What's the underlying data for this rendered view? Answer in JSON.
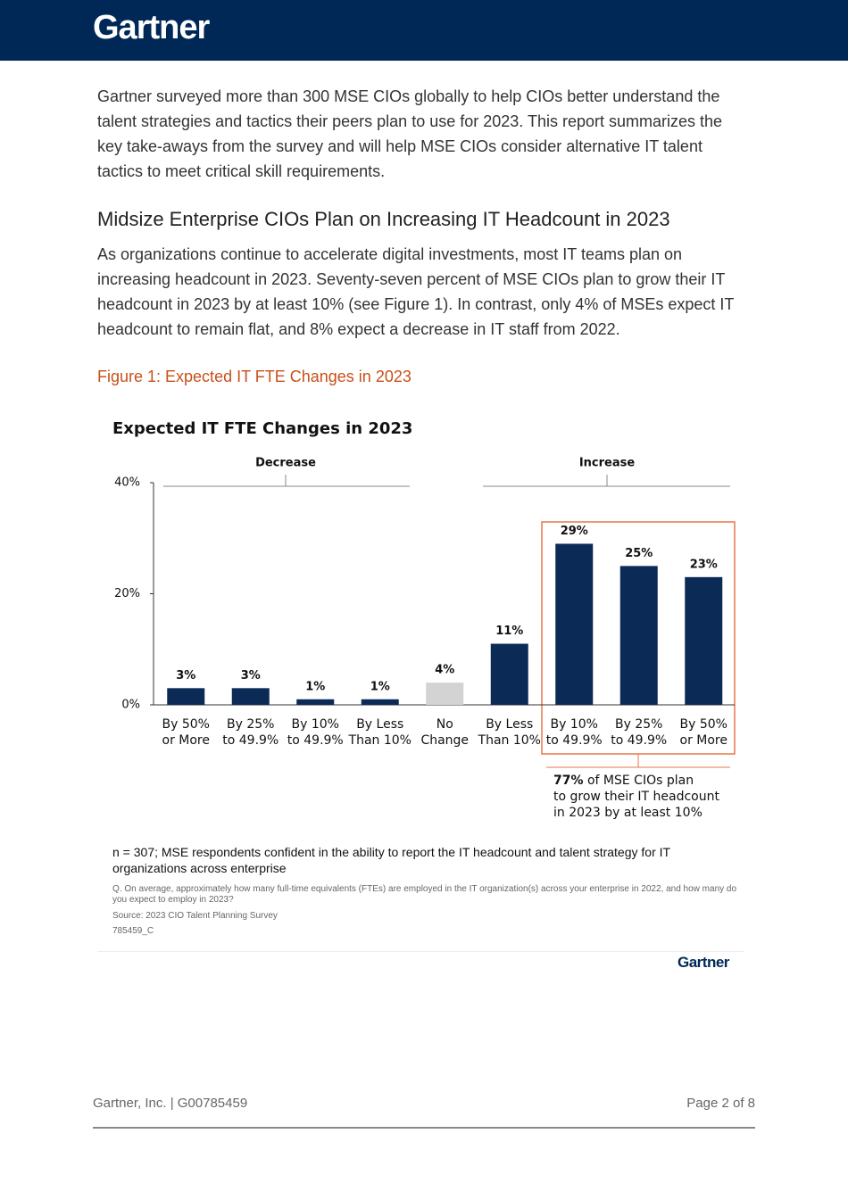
{
  "header": {
    "logo": "Gartner"
  },
  "intro": "Gartner surveyed more than 300 MSE CIOs globally to help CIOs better understand the talent strategies and tactics their peers plan to use for 2023. This report summarizes the key take-aways from the survey and will help MSE CIOs consider alternative IT talent tactics to meet critical skill requirements.",
  "section": {
    "heading": "Midsize Enterprise CIOs Plan on Increasing IT Headcount in 2023",
    "paragraph": "As organizations continue to accelerate digital investments, most IT teams plan on increasing headcount in 2023. Seventy-seven percent of MSE CIOs plan to grow their IT headcount in 2023 by at least 10% (see Figure 1). In contrast, only 4% of MSEs expect IT headcount to remain flat, and 8% expect a decrease in IT staff from 2022."
  },
  "figure_caption": "Figure 1: Expected IT FTE Changes in 2023",
  "chart_data": {
    "type": "bar",
    "title": "Expected IT FTE Changes in 2023",
    "categories": [
      "By 50% or More",
      "By 25% to 49.9%",
      "By 10% to 49.9%",
      "By Less Than 10%",
      "No Change",
      "By Less Than 10%",
      "By 10% to 49.9%",
      "By 25% to 49.9%",
      "By 50% or More"
    ],
    "values": [
      3,
      3,
      1,
      1,
      4,
      11,
      29,
      25,
      23
    ],
    "value_labels": [
      "3%",
      "3%",
      "1%",
      "1%",
      "4%",
      "11%",
      "29%",
      "25%",
      "23%"
    ],
    "colors": [
      "#0b2a56",
      "#0b2a56",
      "#0b2a56",
      "#0b2a56",
      "#d3d3d3",
      "#0b2a56",
      "#0b2a56",
      "#0b2a56",
      "#0b2a56"
    ],
    "ylim": [
      0,
      40
    ],
    "yticks": [
      {
        "value": 0,
        "label": "0%"
      },
      {
        "value": 20,
        "label": "20%"
      },
      {
        "value": 40,
        "label": "40%"
      }
    ],
    "grid": false,
    "group_labels": [
      "Decrease",
      "Increase"
    ],
    "annotation_bold": "77%",
    "annotation": "of MSE CIOs plan to grow their IT headcount in 2023 by at least 10%",
    "sample_note": "n = 307; MSE respondents confident in the ability to report the IT headcount and talent strategy for IT organizations across enterprise",
    "question": "Q. On average, approximately how many full-time equivalents (FTEs) are employed in the IT organization(s) across your enterprise in 2022, and how many do you expect to employ in 2023?",
    "source": "Source: 2023 CIO Talent Planning Survey",
    "id": "785459_C",
    "logo": "Gartner"
  },
  "footer": {
    "left": "Gartner, Inc. | G00785459",
    "right": "Page 2 of 8"
  }
}
